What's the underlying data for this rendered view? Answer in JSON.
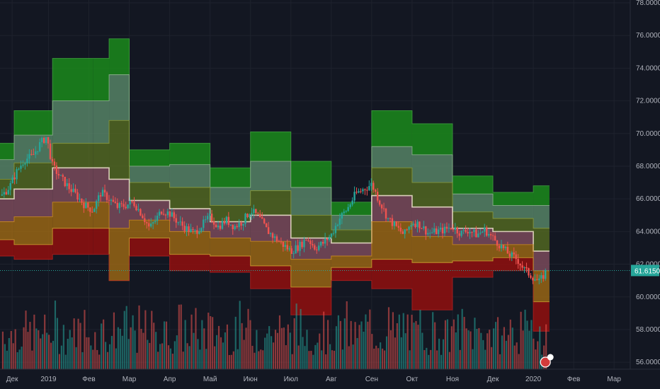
{
  "chart_data": {
    "type": "line",
    "instrument_last_price": "61.6150",
    "colors": {
      "background": "#131722",
      "grid": "#1e222d",
      "up": "#26a69a",
      "down": "#ef5350",
      "band_green_dark": "#1b8a1b",
      "band_green_light": "#5a8a6a",
      "band_olive": "#556b22",
      "band_mid": "#7a4a5a",
      "band_orange": "#a06a14",
      "band_red": "#8b1010",
      "pivot_line": "#e8dcc8",
      "last_price": "#26a69a"
    },
    "y_axis": {
      "range": [
        55.4,
        78.0
      ],
      "ticks": [
        "78.0000",
        "76.0000",
        "74.0000",
        "72.0000",
        "70.0000",
        "68.0000",
        "66.0000",
        "64.0000",
        "62.0000",
        "60.0000",
        "58.0000",
        "56.0000"
      ],
      "tick_values": [
        78,
        76,
        74,
        72,
        70,
        68,
        66,
        64,
        62,
        60,
        58,
        56
      ]
    },
    "x_axis": {
      "labels": [
        "Дек",
        "2019",
        "Фев",
        "Мар",
        "Апр",
        "Май",
        "Июн",
        "Июл",
        "Авг",
        "Сен",
        "Окт",
        "Ноя",
        "Дек",
        "2020",
        "Фев",
        "Мар"
      ],
      "label_index": [
        0.2,
        2.0,
        4.0,
        6.0,
        8.0,
        10.0,
        12.0,
        14.0,
        16.0,
        18.0,
        20.0,
        22.0,
        24.0,
        26.0,
        28.0,
        30.0
      ],
      "index_range": [
        -0.4,
        30.8
      ]
    },
    "pivot_periods": [
      {
        "start": -0.4,
        "end": 0.3,
        "r3": 69.4,
        "r2": 68.4,
        "r1": 67.2,
        "p": 66.0,
        "s1": 64.6,
        "s2": 63.5,
        "s3": 62.5
      },
      {
        "start": 0.3,
        "end": 2.2,
        "r3": 71.4,
        "r2": 69.9,
        "r1": 68.2,
        "p": 66.6,
        "s1": 64.9,
        "s2": 63.2,
        "s3": 62.3
      },
      {
        "start": 2.2,
        "end": 4.2,
        "r3": 74.6,
        "r2": 72.0,
        "r1": 69.4,
        "p": 67.9,
        "s1": 65.8,
        "s2": 64.2,
        "s3": 62.6
      },
      {
        "start": 4.2,
        "end": 5.0,
        "r3": 74.6,
        "r2": 72.0,
        "r1": 69.4,
        "p": 67.9,
        "s1": 65.8,
        "s2": 64.2,
        "s3": 62.6
      },
      {
        "start": 5.0,
        "end": 6.0,
        "r3": 75.8,
        "r2": 73.6,
        "r1": 70.8,
        "p": 67.2,
        "s1": 64.2,
        "s2": 61.0,
        "s3": 61.0
      },
      {
        "start": 6.0,
        "end": 8.0,
        "r3": 69.0,
        "r2": 68.0,
        "r1": 67.0,
        "p": 65.9,
        "s1": 64.7,
        "s2": 63.6,
        "s3": 62.5
      },
      {
        "start": 8.0,
        "end": 10.0,
        "r3": 69.4,
        "r2": 68.1,
        "r1": 66.7,
        "p": 65.4,
        "s1": 64.0,
        "s2": 62.6,
        "s3": 61.6
      },
      {
        "start": 10.0,
        "end": 12.0,
        "r3": 67.9,
        "r2": 66.7,
        "r1": 65.6,
        "p": 64.6,
        "s1": 63.6,
        "s2": 62.5,
        "s3": 61.5
      },
      {
        "start": 12.0,
        "end": 14.0,
        "r3": 70.1,
        "r2": 68.3,
        "r1": 66.5,
        "p": 65.0,
        "s1": 63.4,
        "s2": 61.9,
        "s3": 60.5
      },
      {
        "start": 14.0,
        "end": 16.0,
        "r3": 68.3,
        "r2": 66.7,
        "r1": 65.0,
        "p": 63.6,
        "s1": 62.3,
        "s2": 60.6,
        "s3": 58.9
      },
      {
        "start": 16.0,
        "end": 18.0,
        "r3": 65.8,
        "r2": 65.0,
        "r1": 64.1,
        "p": 63.3,
        "s1": 62.5,
        "s2": 61.8,
        "s3": 61.0
      },
      {
        "start": 18.0,
        "end": 20.0,
        "r3": 71.4,
        "r2": 69.2,
        "r1": 67.9,
        "p": 66.2,
        "s1": 64.6,
        "s2": 62.3,
        "s3": 60.5
      },
      {
        "start": 20.0,
        "end": 22.0,
        "r3": 70.6,
        "r2": 68.7,
        "r1": 67.0,
        "p": 65.5,
        "s1": 63.7,
        "s2": 62.1,
        "s3": 59.2
      },
      {
        "start": 22.0,
        "end": 24.0,
        "r3": 67.4,
        "r2": 66.3,
        "r1": 65.2,
        "p": 64.2,
        "s1": 63.2,
        "s2": 62.2,
        "s3": 61.2
      },
      {
        "start": 24.0,
        "end": 26.0,
        "r3": 66.4,
        "r2": 65.6,
        "r1": 64.8,
        "p": 64.0,
        "s1": 63.2,
        "s2": 62.4,
        "s3": 61.6
      },
      {
        "start": 26.0,
        "end": 26.8,
        "r3": 66.8,
        "r2": 65.6,
        "r1": 64.2,
        "p": 62.8,
        "s1": 61.6,
        "s2": 59.7,
        "s3": 57.9
      }
    ],
    "price_path": [
      [
        -0.3,
        66.2
      ],
      [
        0.1,
        66.8
      ],
      [
        0.4,
        67.6
      ],
      [
        0.8,
        68.4
      ],
      [
        1.2,
        68.6
      ],
      [
        1.6,
        69.4
      ],
      [
        1.9,
        69.8
      ],
      [
        2.2,
        68.0
      ],
      [
        2.6,
        67.3
      ],
      [
        3.0,
        66.7
      ],
      [
        3.4,
        66.2
      ],
      [
        3.8,
        65.6
      ],
      [
        4.2,
        65.3
      ],
      [
        4.6,
        66.4
      ],
      [
        5.0,
        66.0
      ],
      [
        5.4,
        65.5
      ],
      [
        5.8,
        65.6
      ],
      [
        6.2,
        65.8
      ],
      [
        6.6,
        65.1
      ],
      [
        7.0,
        64.2
      ],
      [
        7.3,
        64.7
      ],
      [
        7.6,
        65.3
      ],
      [
        8.0,
        65.1
      ],
      [
        8.4,
        64.6
      ],
      [
        8.8,
        64.2
      ],
      [
        9.2,
        63.9
      ],
      [
        9.6,
        64.4
      ],
      [
        10.0,
        64.9
      ],
      [
        10.4,
        64.3
      ],
      [
        10.8,
        64.7
      ],
      [
        11.2,
        64.3
      ],
      [
        11.6,
        64.6
      ],
      [
        12.0,
        65.3
      ],
      [
        12.4,
        64.9
      ],
      [
        12.8,
        64.1
      ],
      [
        13.2,
        63.6
      ],
      [
        13.6,
        63.2
      ],
      [
        14.0,
        62.8
      ],
      [
        14.4,
        63.1
      ],
      [
        14.8,
        63.6
      ],
      [
        15.2,
        63.0
      ],
      [
        15.6,
        63.3
      ],
      [
        16.0,
        63.8
      ],
      [
        16.4,
        64.8
      ],
      [
        16.8,
        65.4
      ],
      [
        17.2,
        66.3
      ],
      [
        17.6,
        66.6
      ],
      [
        18.0,
        66.9
      ],
      [
        18.4,
        65.8
      ],
      [
        18.8,
        64.8
      ],
      [
        19.2,
        64.3
      ],
      [
        19.6,
        63.8
      ],
      [
        20.0,
        64.6
      ],
      [
        20.4,
        64.4
      ],
      [
        20.8,
        63.9
      ],
      [
        21.2,
        64.0
      ],
      [
        21.6,
        64.1
      ],
      [
        22.0,
        64.3
      ],
      [
        22.4,
        63.9
      ],
      [
        22.8,
        64.1
      ],
      [
        23.2,
        63.8
      ],
      [
        23.6,
        64.1
      ],
      [
        24.0,
        63.6
      ],
      [
        24.4,
        63.1
      ],
      [
        24.8,
        62.6
      ],
      [
        25.2,
        62.3
      ],
      [
        25.6,
        61.6
      ],
      [
        26.0,
        61.2
      ],
      [
        26.3,
        60.9
      ],
      [
        26.6,
        61.5
      ]
    ],
    "volume_seed": 7,
    "volume_index_range": [
      -0.3,
      26.7
    ],
    "volume_max_px_fraction": 0.72
  }
}
